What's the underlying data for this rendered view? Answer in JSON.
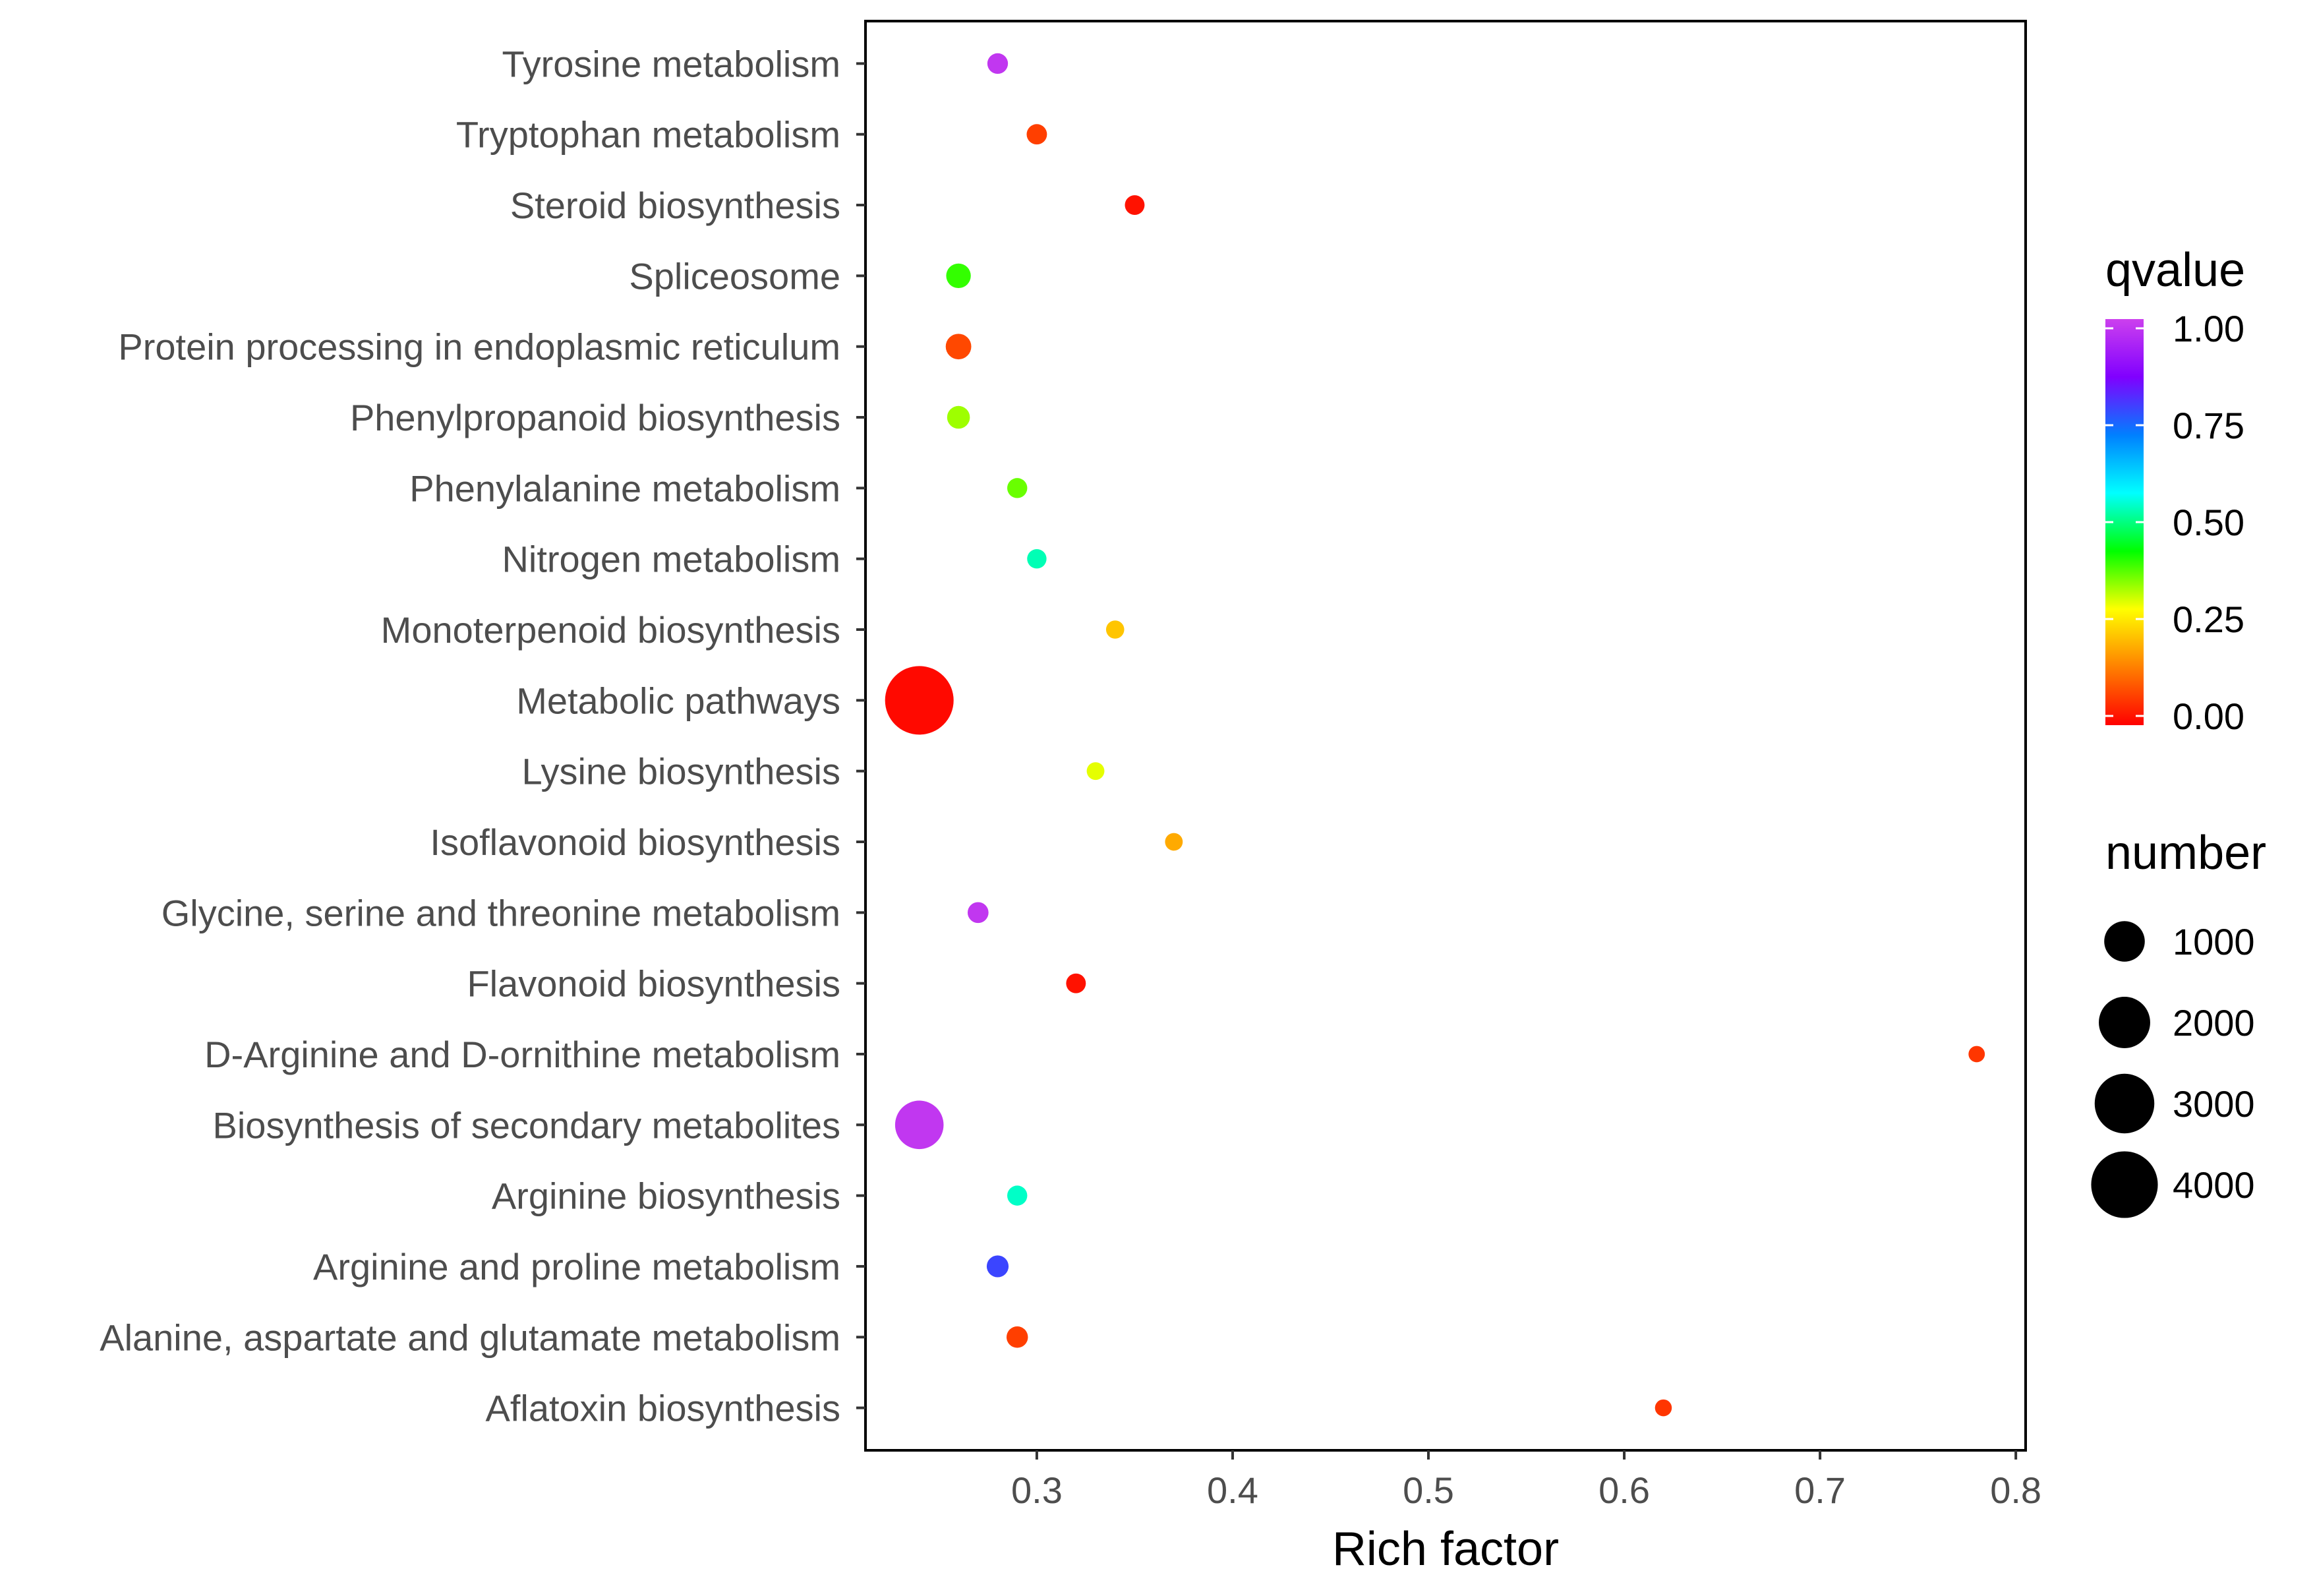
{
  "chart_data": {
    "type": "scatter",
    "title": "",
    "xlabel": "Rich factor",
    "ylabel": "",
    "xlim": [
      0.2125,
      0.805
    ],
    "xticks": [
      0.3,
      0.4,
      0.5,
      0.6,
      0.7,
      0.8
    ],
    "xtick_labels": [
      "0.3",
      "0.4",
      "0.5",
      "0.6",
      "0.7",
      "0.8"
    ],
    "grid": false,
    "categories": [
      "Tyrosine metabolism",
      "Tryptophan metabolism",
      "Steroid biosynthesis",
      "Spliceosome",
      "Protein processing in endoplasmic reticulum",
      "Phenylpropanoid biosynthesis",
      "Phenylalanine metabolism",
      "Nitrogen metabolism",
      "Monoterpenoid biosynthesis",
      "Metabolic pathways",
      "Lysine biosynthesis",
      "Isoflavonoid biosynthesis",
      "Glycine, serine and threonine metabolism",
      "Flavonoid biosynthesis",
      "D-Arginine and D-ornithine metabolism",
      "Biosynthesis of secondary metabolites",
      "Arginine biosynthesis",
      "Arginine and proline metabolism",
      "Alanine, aspartate and glutamate metabolism",
      "Aflatoxin biosynthesis"
    ],
    "points": [
      {
        "pathway": "Tyrosine metabolism",
        "rich_factor": 0.28,
        "qvalue": 0.98,
        "number": 55
      },
      {
        "pathway": "Tryptophan metabolism",
        "rich_factor": 0.3,
        "qvalue": 0.07,
        "number": 50
      },
      {
        "pathway": "Steroid biosynthesis",
        "rich_factor": 0.35,
        "qvalue": 0.02,
        "number": 40
      },
      {
        "pathway": "Spliceosome",
        "rich_factor": 0.26,
        "qvalue": 0.4,
        "number": 150
      },
      {
        "pathway": "Protein processing in endoplasmic reticulum",
        "rich_factor": 0.26,
        "qvalue": 0.08,
        "number": 180
      },
      {
        "pathway": "Phenylpropanoid biosynthesis",
        "rich_factor": 0.26,
        "qvalue": 0.34,
        "number": 100
      },
      {
        "pathway": "Phenylalanine metabolism",
        "rich_factor": 0.29,
        "qvalue": 0.37,
        "number": 45
      },
      {
        "pathway": "Nitrogen metabolism",
        "rich_factor": 0.3,
        "qvalue": 0.53,
        "number": 35
      },
      {
        "pathway": "Monoterpenoid biosynthesis",
        "rich_factor": 0.34,
        "qvalue": 0.22,
        "number": 20
      },
      {
        "pathway": "Metabolic pathways",
        "rich_factor": 0.24,
        "qvalue": 0.01,
        "number": 4300
      },
      {
        "pathway": "Lysine biosynthesis",
        "rich_factor": 0.33,
        "qvalue": 0.3,
        "number": 15
      },
      {
        "pathway": "Isoflavonoid biosynthesis",
        "rich_factor": 0.37,
        "qvalue": 0.19,
        "number": 15
      },
      {
        "pathway": "Glycine, serine and threonine metabolism",
        "rich_factor": 0.27,
        "qvalue": 0.98,
        "number": 60
      },
      {
        "pathway": "Flavonoid biosynthesis",
        "rich_factor": 0.32,
        "qvalue": 0.02,
        "number": 40
      },
      {
        "pathway": "D-Arginine and D-ornithine metabolism",
        "rich_factor": 0.78,
        "qvalue": 0.06,
        "number": 5
      },
      {
        "pathway": "Biosynthesis of secondary metabolites",
        "rich_factor": 0.24,
        "qvalue": 0.98,
        "number": 1700
      },
      {
        "pathway": "Arginine biosynthesis",
        "rich_factor": 0.29,
        "qvalue": 0.54,
        "number": 45
      },
      {
        "pathway": "Arginine and proline metabolism",
        "rich_factor": 0.28,
        "qvalue": 0.78,
        "number": 80
      },
      {
        "pathway": "Alanine, aspartate and glutamate metabolism",
        "rich_factor": 0.29,
        "qvalue": 0.07,
        "number": 70
      },
      {
        "pathway": "Aflatoxin biosynthesis",
        "rich_factor": 0.62,
        "qvalue": 0.06,
        "number": 8
      }
    ],
    "color_legend": {
      "title": "qvalue",
      "min": 0.0,
      "max": 1.0,
      "breaks": [
        0.0,
        0.25,
        0.5,
        0.75,
        1.0
      ],
      "labels": [
        "0.00",
        "0.25",
        "0.50",
        "0.75",
        "1.00"
      ],
      "gradient": [
        "#ff0000",
        "#ff8000",
        "#ffff00",
        "#00ff00",
        "#00ffff",
        "#0080ff",
        "#8000ff",
        "#cc40ee"
      ],
      "placement": "right"
    },
    "size_legend": {
      "title": "number",
      "values": [
        1000,
        2000,
        3000,
        4000
      ],
      "labels": [
        "1000",
        "2000",
        "3000",
        "4000"
      ],
      "placement": "right"
    }
  }
}
